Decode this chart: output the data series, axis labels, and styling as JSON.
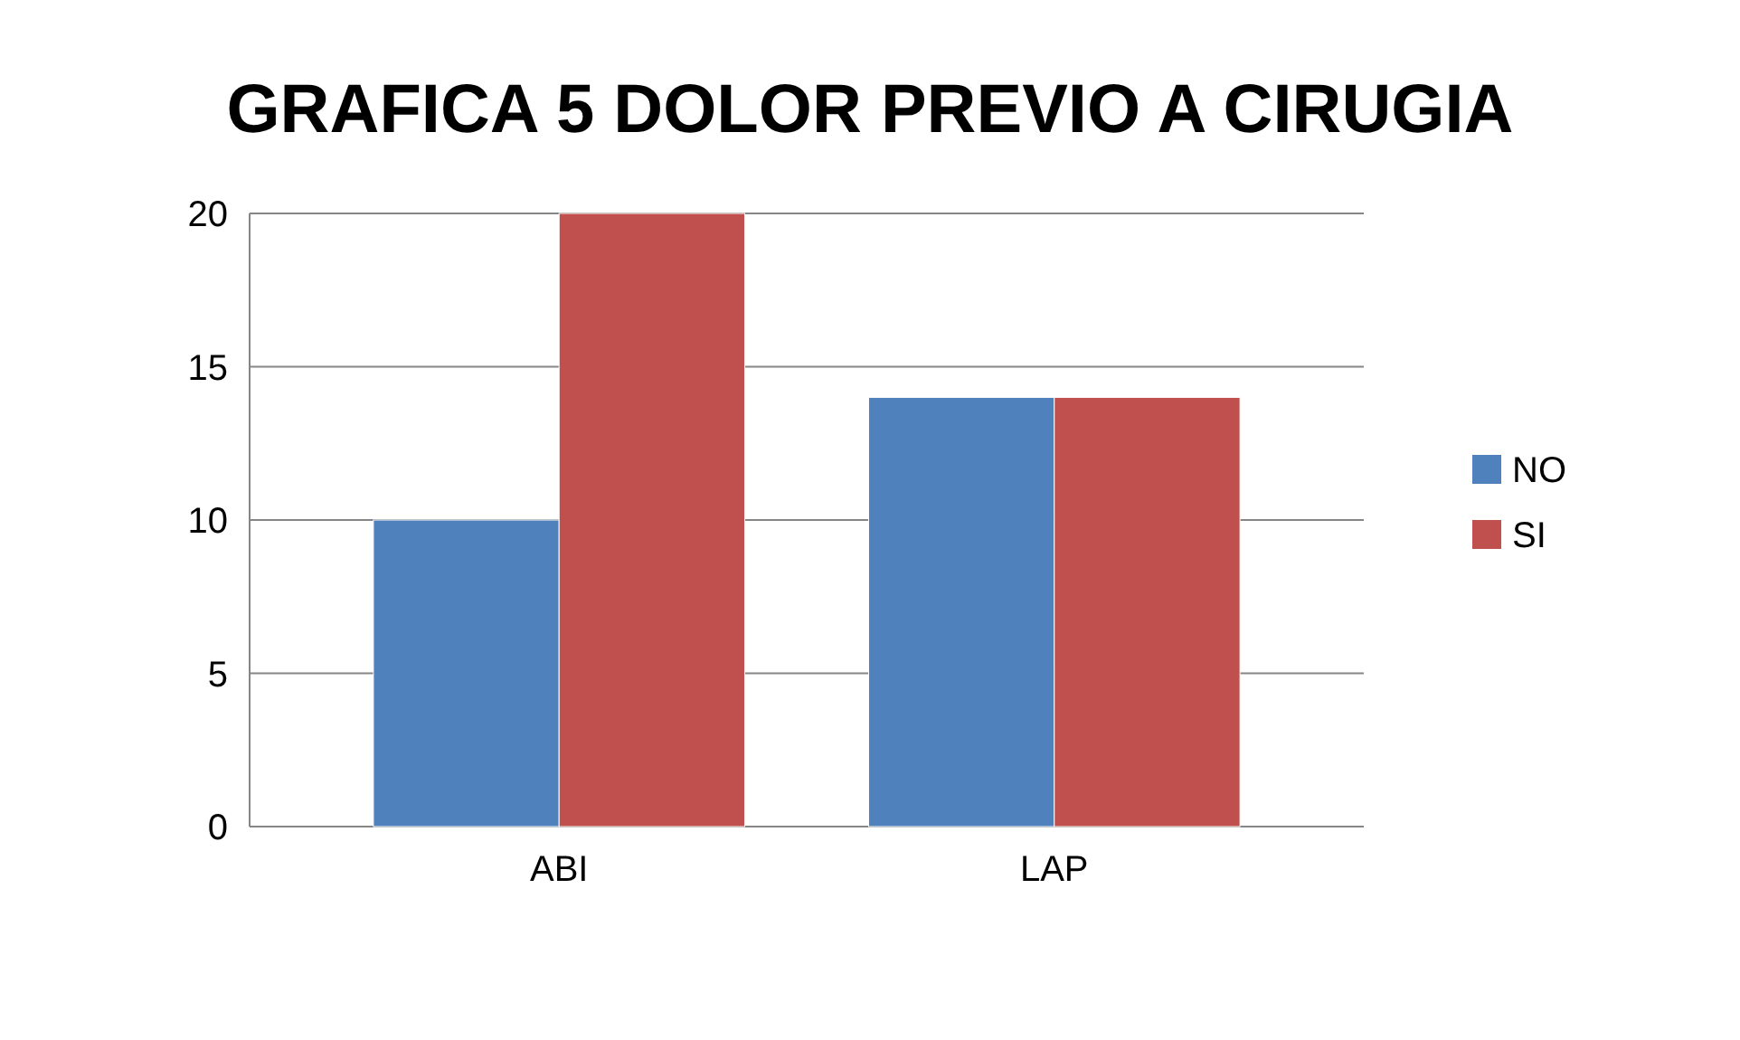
{
  "chart_data": {
    "type": "bar",
    "title": "GRAFICA 5 DOLOR PREVIO A CIRUGIA",
    "categories": [
      "ABI",
      "LAP"
    ],
    "series": [
      {
        "name": "NO",
        "color": "#4f81bd",
        "values": [
          10,
          14
        ]
      },
      {
        "name": "SI",
        "color": "#c0504d",
        "values": [
          20,
          14
        ]
      }
    ],
    "ylim": [
      0,
      20
    ],
    "yticks": [
      0,
      5,
      10,
      15,
      20
    ],
    "grid": "y",
    "legend": "right"
  }
}
